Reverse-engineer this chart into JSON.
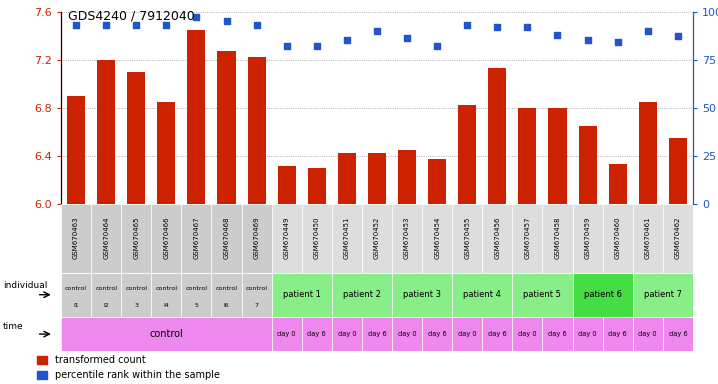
{
  "title": "GDS4240 / 7912040",
  "samples": [
    "GSM670463",
    "GSM670464",
    "GSM670465",
    "GSM670466",
    "GSM670467",
    "GSM670468",
    "GSM670469",
    "GSM670449",
    "GSM670450",
    "GSM670451",
    "GSM670452",
    "GSM670453",
    "GSM670454",
    "GSM670455",
    "GSM670456",
    "GSM670457",
    "GSM670458",
    "GSM670459",
    "GSM670460",
    "GSM670461",
    "GSM670462"
  ],
  "bar_values": [
    6.9,
    7.2,
    7.1,
    6.85,
    7.45,
    7.27,
    7.22,
    6.31,
    6.3,
    6.42,
    6.42,
    6.45,
    6.37,
    6.82,
    7.13,
    6.8,
    6.8,
    6.65,
    6.33,
    6.85,
    6.55
  ],
  "dot_values": [
    93,
    93,
    93,
    93,
    97,
    95,
    93,
    82,
    82,
    85,
    90,
    86,
    82,
    93,
    92,
    92,
    88,
    85,
    84,
    90,
    87
  ],
  "ylim_left": [
    6.0,
    7.6
  ],
  "ylim_right": [
    0,
    100
  ],
  "yticks_left": [
    6.0,
    6.4,
    6.8,
    7.2,
    7.6
  ],
  "yticks_right": [
    0,
    25,
    50,
    75,
    100
  ],
  "bar_color": "#cc2200",
  "dot_color": "#2255cc",
  "control_labels": [
    "control\nl1",
    "control\nl2",
    "control\n3",
    "control\nl4",
    "control\n5",
    "control\nl6",
    "control\n7"
  ],
  "patient_labels": [
    "patient 1",
    "patient 2",
    "patient 3",
    "patient 4",
    "patient 5",
    "patient 6",
    "patient 7"
  ],
  "patient_colors": [
    "#88ee88",
    "#88ee88",
    "#88ee88",
    "#88ee88",
    "#88ee88",
    "#44dd44",
    "#88ee88"
  ],
  "control_bg": "#cccccc",
  "sample_bg_control": "#cccccc",
  "sample_bg_patient": "#dddddd",
  "time_pink": "#ee88ee"
}
